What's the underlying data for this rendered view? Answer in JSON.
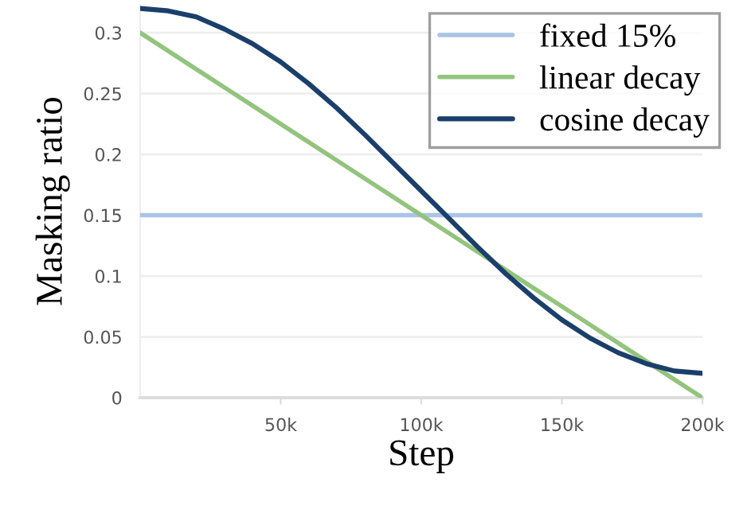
{
  "chart_data": {
    "type": "line",
    "xlabel": "Step",
    "ylabel": "Masking ratio",
    "x": [
      0,
      10000,
      20000,
      30000,
      40000,
      50000,
      60000,
      70000,
      80000,
      90000,
      100000,
      110000,
      120000,
      130000,
      140000,
      150000,
      160000,
      170000,
      180000,
      190000,
      200000
    ],
    "series": [
      {
        "name": "fixed 15%",
        "color": "#a9c4e6",
        "values": [
          0.15,
          0.15,
          0.15,
          0.15,
          0.15,
          0.15,
          0.15,
          0.15,
          0.15,
          0.15,
          0.15,
          0.15,
          0.15,
          0.15,
          0.15,
          0.15,
          0.15,
          0.15,
          0.15,
          0.15,
          0.15
        ]
      },
      {
        "name": "linear decay",
        "color": "#93c47d",
        "values": [
          0.3,
          0.285,
          0.27,
          0.255,
          0.24,
          0.225,
          0.21,
          0.195,
          0.18,
          0.165,
          0.15,
          0.135,
          0.12,
          0.105,
          0.09,
          0.075,
          0.06,
          0.045,
          0.03,
          0.015,
          0.0
        ]
      },
      {
        "name": "cosine decay",
        "color": "#1b3f6b",
        "values": [
          0.32,
          0.318,
          0.313,
          0.303,
          0.291,
          0.276,
          0.258,
          0.238,
          0.216,
          0.193,
          0.17,
          0.147,
          0.124,
          0.102,
          0.082,
          0.064,
          0.049,
          0.037,
          0.028,
          0.022,
          0.02
        ]
      }
    ],
    "xlim": [
      0,
      200000
    ],
    "ylim": [
      0,
      0.323
    ],
    "xticks": [
      {
        "value": 50000,
        "label": "50k"
      },
      {
        "value": 100000,
        "label": "100k"
      },
      {
        "value": 150000,
        "label": "150k"
      },
      {
        "value": 200000,
        "label": "200k"
      }
    ],
    "yticks": [
      0,
      0.05,
      0.1,
      0.15,
      0.2,
      0.25,
      0.3
    ],
    "grid": "y",
    "legend": "top right",
    "marker": "none",
    "line_style": "solid"
  }
}
